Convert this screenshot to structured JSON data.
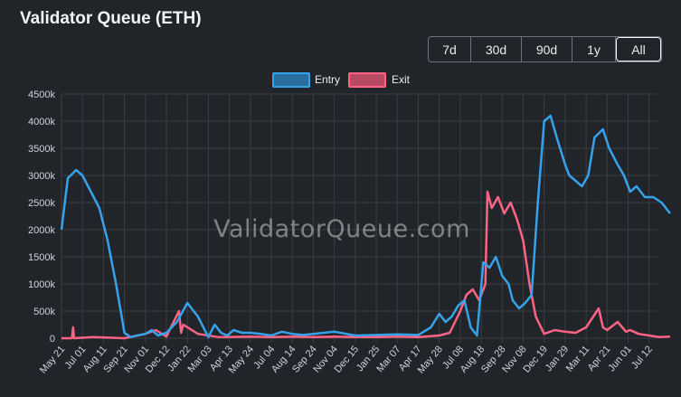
{
  "header": {
    "title": "Validator Queue (ETH)"
  },
  "range_buttons": [
    {
      "label": "7d",
      "active": false
    },
    {
      "label": "30d",
      "active": false
    },
    {
      "label": "90d",
      "active": false
    },
    {
      "label": "1y",
      "active": false
    },
    {
      "label": "All",
      "active": true
    }
  ],
  "watermark": "ValidatorQueue.com",
  "colors": {
    "entry": "#36a2eb",
    "exit": "#ff6384",
    "background": "#212529",
    "grid": "#3a3f44"
  },
  "chart_data": {
    "type": "line",
    "title": "Validator Queue (ETH)",
    "legend": "top-center",
    "grid": true,
    "ylim": [
      0,
      4500000
    ],
    "yticks": [
      "0",
      "500k",
      "1000k",
      "1500k",
      "2000k",
      "2500k",
      "3000k",
      "3500k",
      "4000k",
      "4500k"
    ],
    "xticks": [
      "May 21",
      "Jul 01",
      "Aug 11",
      "Sep 21",
      "Nov 01",
      "Dec 12",
      "Jan 22",
      "Mar 03",
      "Apr 13",
      "May 24",
      "Jul 04",
      "Aug 14",
      "Sep 24",
      "Nov 04",
      "Dec 15",
      "Jan 25",
      "Mar 07",
      "Apr 17",
      "May 28",
      "Jul 08",
      "Aug 18",
      "Sep 28",
      "Nov 08",
      "Dec 19",
      "Jan 29",
      "Mar 11",
      "Apr 21",
      "Jun 01",
      "Jul 12"
    ],
    "series": [
      {
        "name": "Entry",
        "color": "#36a2eb",
        "x": [
          0.0,
          0.3,
          0.7,
          1.0,
          1.4,
          1.8,
          2.2,
          2.6,
          3.0,
          3.3,
          3.6,
          4.0,
          4.3,
          4.6,
          5.0,
          5.5,
          6.0,
          6.5,
          7.0,
          7.3,
          7.6,
          7.9,
          8.2,
          8.6,
          9.0,
          9.5,
          10.0,
          10.5,
          11.0,
          11.5,
          12.0,
          13.0,
          14.0,
          15.0,
          16.0,
          17.0,
          17.6,
          18.0,
          18.3,
          18.6,
          18.9,
          19.2,
          19.5,
          19.8,
          20.1,
          20.4,
          20.7,
          21.0,
          21.3,
          21.5,
          21.8,
          22.1,
          22.4,
          22.7,
          23.0,
          23.3,
          23.6,
          24.0,
          24.2,
          24.5,
          24.8,
          25.1,
          25.4,
          25.8,
          26.1,
          26.5,
          26.8,
          27.1,
          27.4,
          27.8,
          28.2,
          28.6,
          29.0
        ],
        "values": [
          2000000,
          2950000,
          3100000,
          3000000,
          2700000,
          2400000,
          1800000,
          1000000,
          100000,
          20000,
          50000,
          80000,
          150000,
          50000,
          100000,
          300000,
          650000,
          400000,
          20000,
          250000,
          100000,
          50000,
          150000,
          100000,
          100000,
          80000,
          50000,
          120000,
          80000,
          60000,
          80000,
          120000,
          50000,
          60000,
          70000,
          60000,
          200000,
          450000,
          300000,
          400000,
          600000,
          700000,
          200000,
          50000,
          1400000,
          1300000,
          1500000,
          1150000,
          1000000,
          700000,
          550000,
          650000,
          800000,
          2500000,
          4000000,
          4100000,
          3700000,
          3200000,
          3000000,
          2900000,
          2800000,
          3000000,
          3700000,
          3850000,
          3500000,
          3200000,
          3000000,
          2700000,
          2800000,
          2600000,
          2600000,
          2500000,
          2300000
        ]
      },
      {
        "name": "Exit",
        "color": "#ff6384",
        "x": [
          0.0,
          0.5,
          0.55,
          0.6,
          1.5,
          3.0,
          4.0,
          4.5,
          5.0,
          5.6,
          5.7,
          5.8,
          6.5,
          7.5,
          9.0,
          10.0,
          11.0,
          12.0,
          13.0,
          14.0,
          15.0,
          16.0,
          17.0,
          18.0,
          18.5,
          19.0,
          19.3,
          19.6,
          19.9,
          20.2,
          20.3,
          20.5,
          20.8,
          21.1,
          21.4,
          21.7,
          22.0,
          22.3,
          22.6,
          23.0,
          23.5,
          24.0,
          24.5,
          25.0,
          25.6,
          25.8,
          26.0,
          26.5,
          26.9,
          27.1,
          27.5,
          28.0,
          28.5,
          29.0
        ],
        "values": [
          0,
          0,
          200000,
          0,
          20000,
          0,
          80000,
          150000,
          30000,
          500000,
          100000,
          250000,
          80000,
          20000,
          30000,
          20000,
          30000,
          20000,
          30000,
          20000,
          20000,
          30000,
          20000,
          50000,
          100000,
          500000,
          800000,
          900000,
          700000,
          1000000,
          2700000,
          2400000,
          2600000,
          2300000,
          2500000,
          2200000,
          1800000,
          1000000,
          400000,
          80000,
          150000,
          120000,
          100000,
          200000,
          550000,
          200000,
          150000,
          300000,
          120000,
          150000,
          80000,
          50000,
          20000,
          30000
        ]
      }
    ]
  }
}
